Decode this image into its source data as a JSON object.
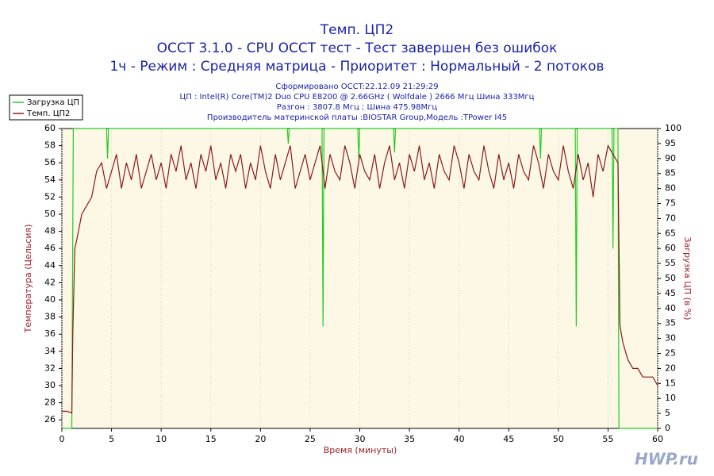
{
  "chart_data": {
    "type": "line",
    "title": [
      "Темп. ЦП2",
      "OCCT 3.1.0 - CPU OCCT тест - Тест завершен без ошибок",
      "1ч - Режим : Средняя матрица - Приоритет : Нормальный - 2 потоков"
    ],
    "subtitle": [
      "Сформировано OCCT:22.12.09 21:29:29",
      "ЦП : Intel(R) Core(TM)2 Duo CPU E8200 @ 2.66GHz ( Wolfdale ) 2666 Мгц Шина 333Мгц",
      "Разгон : 3807.8 Мгц ; Шина 475.98Мгц",
      "Производитель материнской платы :BIOSTAR Group,Модель :TPower I45"
    ],
    "xlabel": "Время (минуты)",
    "ylabel": "Температура (Цельсия)",
    "y2label": "Загрузка ЦП (в %)",
    "watermark": "HWP.ru",
    "xlim": [
      0,
      60
    ],
    "xticks": [
      0,
      5,
      10,
      15,
      20,
      25,
      30,
      35,
      40,
      45,
      50,
      55,
      60
    ],
    "ylim": [
      25,
      60
    ],
    "yticks": [
      26,
      28,
      30,
      32,
      34,
      36,
      38,
      40,
      42,
      44,
      46,
      48,
      50,
      52,
      54,
      56,
      58,
      60
    ],
    "y2lim": [
      0,
      100
    ],
    "y2ticks": [
      0,
      5,
      10,
      15,
      20,
      25,
      30,
      35,
      40,
      45,
      50,
      55,
      60,
      65,
      70,
      75,
      80,
      85,
      90,
      95,
      100
    ],
    "grid": true,
    "legend": "top-left",
    "series": [
      {
        "name": "Загрузка ЦП",
        "color": "#22cc22",
        "axis": "y2",
        "x": [
          0,
          1.0,
          1.15,
          4.5,
          4.6,
          4.7,
          22.7,
          22.8,
          22.9,
          26.2,
          26.3,
          26.4,
          29.8,
          29.9,
          30,
          33.4,
          33.5,
          33.6,
          48.1,
          48.2,
          48.3,
          51.7,
          51.8,
          51.9,
          55.4,
          55.5,
          55.6,
          56.0,
          56.1,
          60
        ],
        "values": [
          0,
          0,
          100,
          100,
          90,
          100,
          100,
          95,
          100,
          100,
          34,
          100,
          100,
          90,
          100,
          100,
          92,
          100,
          100,
          90,
          100,
          100,
          34,
          100,
          100,
          60,
          100,
          100,
          0,
          0
        ]
      },
      {
        "name": "Темп. ЦП2",
        "color": "#8b1a1a",
        "x": [
          0,
          0.5,
          1.0,
          1.1,
          1.3,
          1.5,
          2,
          2.5,
          3,
          3.5,
          4,
          4.5,
          5,
          5.5,
          6,
          6.5,
          7,
          7.5,
          8,
          8.5,
          9,
          9.5,
          10,
          10.5,
          11,
          11.5,
          12,
          12.5,
          13,
          13.5,
          14,
          14.5,
          15,
          15.5,
          16,
          16.5,
          17,
          17.5,
          18,
          18.5,
          19,
          19.5,
          20,
          20.5,
          21,
          21.5,
          22,
          22.5,
          23,
          23.5,
          24,
          24.5,
          25,
          25.5,
          26,
          26.5,
          27,
          27.5,
          28,
          28.5,
          29,
          29.5,
          30,
          30.5,
          31,
          31.5,
          32,
          32.5,
          33,
          33.5,
          34,
          34.5,
          35,
          35.5,
          36,
          36.5,
          37,
          37.5,
          38,
          38.5,
          39,
          39.5,
          40,
          40.5,
          41,
          41.5,
          42,
          42.5,
          43,
          43.5,
          44,
          44.5,
          45,
          45.5,
          46,
          46.5,
          47,
          47.5,
          48,
          48.5,
          49,
          49.5,
          50,
          50.5,
          51,
          51.5,
          52,
          52.5,
          53,
          53.5,
          54,
          54.5,
          55,
          55.5,
          56,
          56.2,
          56.5,
          57,
          57.5,
          58,
          58.5,
          59,
          59.5,
          60
        ],
        "values": [
          27,
          27,
          26.8,
          36,
          46,
          47,
          50,
          51,
          52,
          55,
          56,
          53,
          55,
          57,
          53,
          56,
          54,
          57,
          53,
          55,
          57,
          54,
          56,
          53,
          57,
          55,
          58,
          54,
          56,
          53,
          57,
          55,
          58,
          54,
          56,
          53,
          57,
          55,
          57,
          53,
          56,
          54,
          58,
          55,
          53,
          57,
          54,
          56,
          58,
          53,
          55,
          57,
          54,
          56,
          58,
          53,
          57,
          55,
          54,
          58,
          56,
          53,
          57,
          55,
          54,
          57,
          53,
          56,
          58,
          54,
          56,
          53,
          57,
          55,
          58,
          54,
          56,
          53,
          57,
          55,
          54,
          58,
          56,
          53,
          57,
          55,
          54,
          58,
          55,
          53,
          57,
          54,
          56,
          53,
          57,
          55,
          54,
          58,
          56,
          53,
          57,
          55,
          54,
          58,
          55,
          53,
          57,
          54,
          56,
          52,
          57,
          55,
          58,
          57,
          56,
          37,
          35,
          33,
          32,
          32,
          31,
          31,
          31,
          30
        ]
      }
    ]
  }
}
